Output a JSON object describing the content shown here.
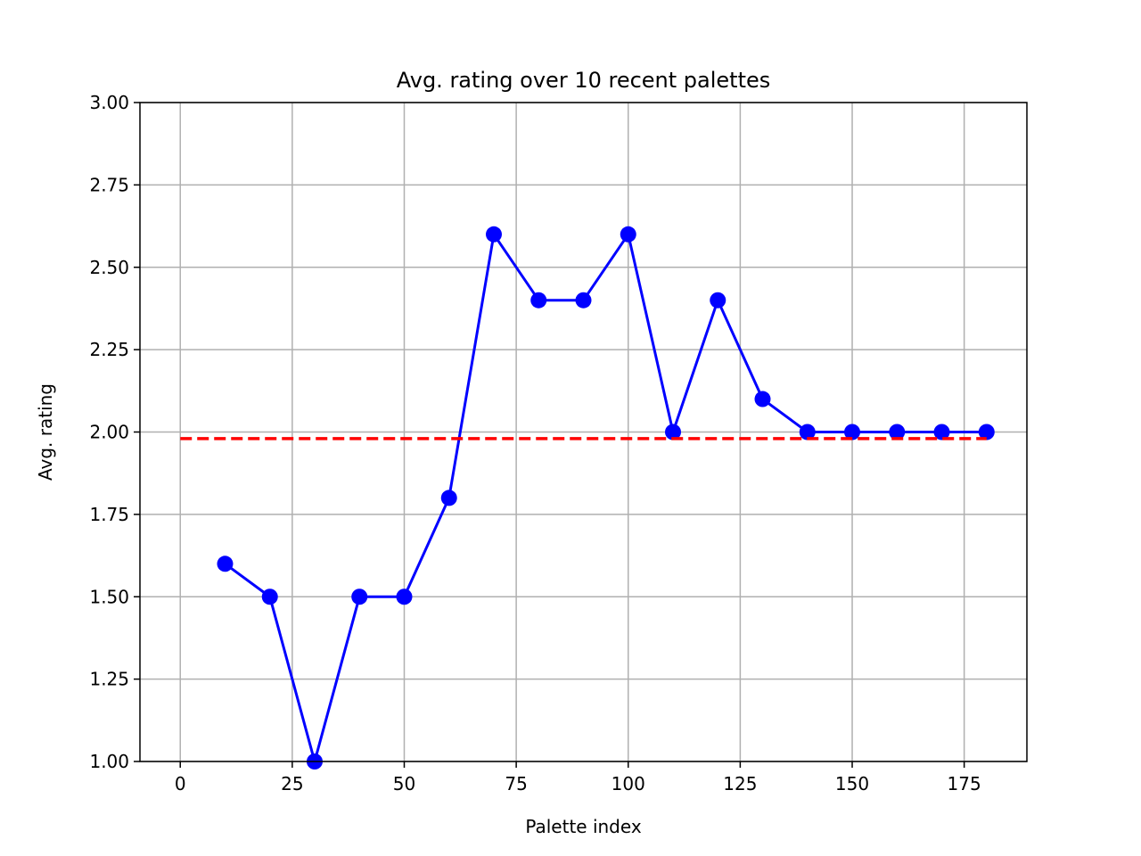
{
  "chart_data": {
    "type": "line",
    "title": "Avg. rating over 10 recent palettes",
    "xlabel": "Palette index",
    "ylabel": "Avg. rating",
    "xlim": [
      -9,
      189
    ],
    "ylim": [
      1.0,
      3.0
    ],
    "xticks": [
      0,
      25,
      50,
      75,
      100,
      125,
      150,
      175
    ],
    "xtick_labels": [
      "0",
      "25",
      "50",
      "75",
      "100",
      "125",
      "150",
      "175"
    ],
    "yticks": [
      1.0,
      1.25,
      1.5,
      1.75,
      2.0,
      2.25,
      2.5,
      2.75,
      3.0
    ],
    "ytick_labels": [
      "1.00",
      "1.25",
      "1.50",
      "1.75",
      "2.00",
      "2.25",
      "2.50",
      "2.75",
      "3.00"
    ],
    "grid": true,
    "series": [
      {
        "style": "solid line with circle markers",
        "color": "#0000ff",
        "x": [
          10,
          20,
          30,
          40,
          50,
          60,
          70,
          80,
          90,
          100,
          110,
          120,
          130,
          140,
          150,
          160,
          170,
          180
        ],
        "y": [
          1.6,
          1.5,
          1.0,
          1.5,
          1.5,
          1.8,
          2.6,
          2.4,
          2.4,
          2.6,
          2.0,
          2.4,
          2.1,
          2.0,
          2.0,
          2.0,
          2.0,
          2.0
        ]
      },
      {
        "style": "dashed line",
        "color": "#ff0000",
        "x": [
          0,
          180
        ],
        "y": [
          1.98,
          1.98
        ]
      }
    ]
  }
}
